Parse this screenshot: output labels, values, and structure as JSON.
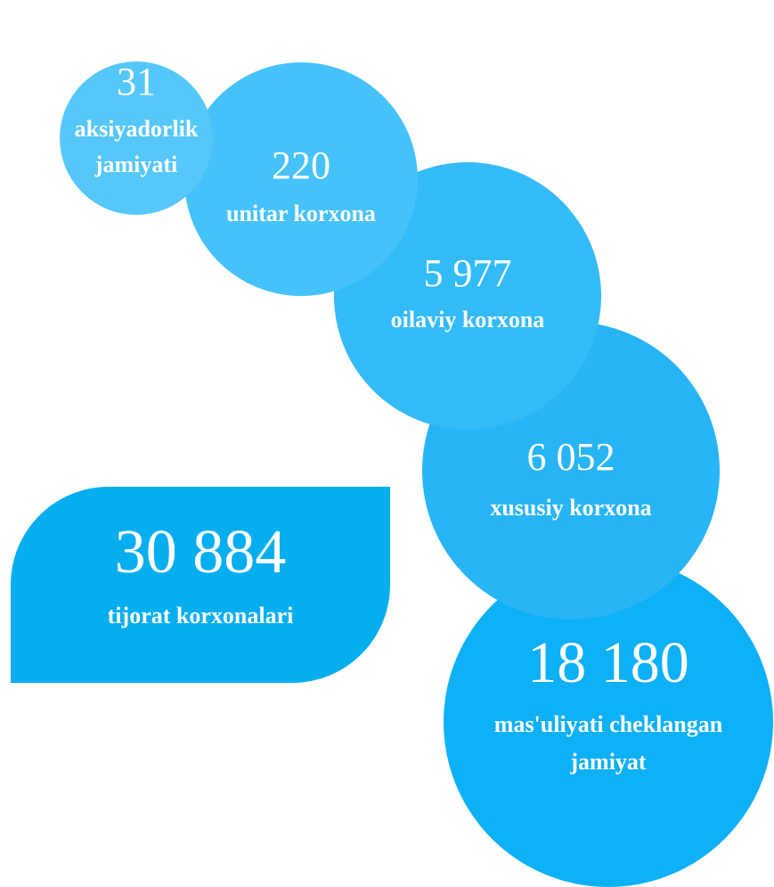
{
  "total": {
    "value": "30 884",
    "label": [
      "tijorat korxonalari"
    ]
  },
  "items": [
    {
      "value": "31",
      "label": [
        "aksiyadorlik",
        "jamiyati"
      ]
    },
    {
      "value": "220",
      "label": [
        "unitar korxona"
      ]
    },
    {
      "value": "5 977",
      "label": [
        "oilaviy korxona"
      ]
    },
    {
      "value": "6 052",
      "label": [
        "xususiy korxona"
      ]
    },
    {
      "value": "18 180",
      "label": [
        "mas'uliyati cheklangan",
        "jamiyat"
      ]
    }
  ]
}
